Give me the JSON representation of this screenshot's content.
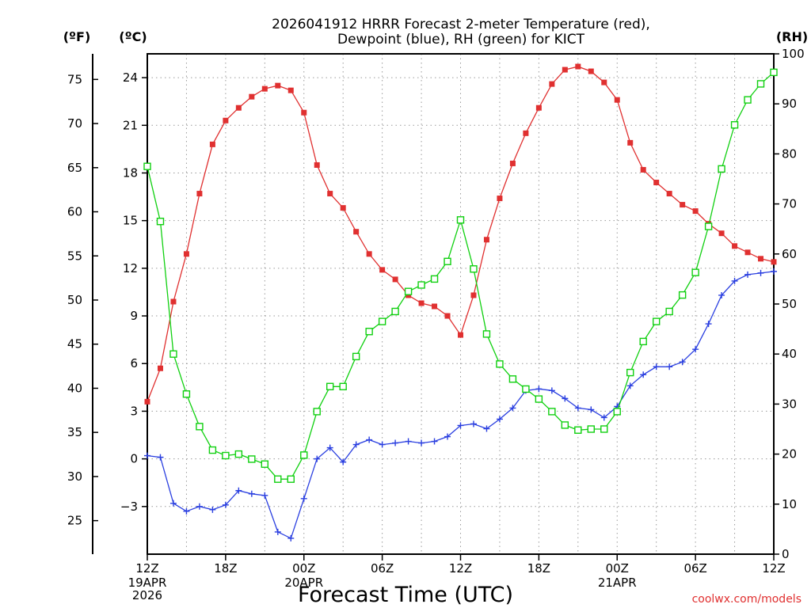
{
  "chart_data": {
    "type": "line",
    "title_line1": "2026041912 HRRR Forecast 2-meter Temperature (red),",
    "title_line2": "Dewpoint (blue), RH (green) for KICT",
    "xlabel": "Forecast Time (UTC)",
    "units": {
      "f": "(ºF)",
      "c": "(ºC)",
      "rh": "(RH)"
    },
    "credit": "coolwx.com/models",
    "x_hours": [
      0,
      1,
      2,
      3,
      4,
      5,
      6,
      7,
      8,
      9,
      10,
      11,
      12,
      13,
      14,
      15,
      16,
      17,
      18,
      19,
      20,
      21,
      22,
      23,
      24,
      25,
      26,
      27,
      28,
      29,
      30,
      31,
      32,
      33,
      34,
      35,
      36,
      37,
      38,
      39,
      40,
      41,
      42,
      43,
      44,
      45,
      46,
      47,
      48
    ],
    "x_range": [
      0,
      48
    ],
    "x_ticks": [
      {
        "hour": 0,
        "label": "12Z",
        "sub1": "19APR",
        "sub2": "2026"
      },
      {
        "hour": 6,
        "label": "18Z",
        "sub1": "",
        "sub2": ""
      },
      {
        "hour": 12,
        "label": "00Z",
        "sub1": "20APR",
        "sub2": ""
      },
      {
        "hour": 18,
        "label": "06Z",
        "sub1": "",
        "sub2": ""
      },
      {
        "hour": 24,
        "label": "12Z",
        "sub1": "",
        "sub2": ""
      },
      {
        "hour": 30,
        "label": "18Z",
        "sub1": "",
        "sub2": ""
      },
      {
        "hour": 36,
        "label": "00Z",
        "sub1": "21APR",
        "sub2": ""
      },
      {
        "hour": 42,
        "label": "06Z",
        "sub1": "",
        "sub2": ""
      },
      {
        "hour": 48,
        "label": "12Z",
        "sub1": "",
        "sub2": ""
      }
    ],
    "c_range": [
      -6,
      25.5
    ],
    "c_ticks": [
      "-3",
      "0",
      "3",
      "6",
      "9",
      "12",
      "15",
      "18",
      "21",
      "24"
    ],
    "f_ticks": [
      "25",
      "30",
      "35",
      "40",
      "45",
      "50",
      "55",
      "60",
      "65",
      "70",
      "75"
    ],
    "rh_range": [
      0,
      100
    ],
    "rh_ticks": [
      "0",
      "10",
      "20",
      "30",
      "40",
      "50",
      "60",
      "70",
      "80",
      "90",
      "100"
    ],
    "grid": true,
    "series": [
      {
        "name": "Temperature",
        "unit": "C",
        "color": "#e03030",
        "marker": "filled-square",
        "values": [
          3.6,
          5.7,
          9.9,
          12.9,
          16.7,
          19.8,
          21.3,
          22.1,
          22.8,
          23.3,
          23.5,
          23.2,
          21.8,
          18.5,
          16.7,
          15.8,
          14.3,
          12.9,
          11.9,
          11.3,
          10.3,
          9.8,
          9.6,
          9.0,
          7.8,
          10.3,
          13.8,
          16.4,
          18.6,
          20.5,
          22.1,
          23.6,
          24.5,
          24.7,
          24.4,
          23.7,
          22.6,
          19.9,
          18.2,
          17.4,
          16.7,
          16.0,
          15.6,
          14.8,
          14.2,
          13.4,
          13.0,
          12.6,
          12.4
        ]
      },
      {
        "name": "Dewpoint",
        "unit": "C",
        "color": "#2a3fe0",
        "marker": "plus",
        "values": [
          0.2,
          0.1,
          -2.8,
          -3.3,
          -3.0,
          -3.2,
          -2.9,
          -2.0,
          -2.2,
          -2.3,
          -4.6,
          -5.0,
          -2.5,
          0.0,
          0.7,
          -0.2,
          0.9,
          1.2,
          0.9,
          1.0,
          1.1,
          1.0,
          1.1,
          1.4,
          2.1,
          2.2,
          1.9,
          2.5,
          3.2,
          4.3,
          4.4,
          4.3,
          3.8,
          3.2,
          3.1,
          2.6,
          3.3,
          4.6,
          5.3,
          5.8,
          5.8,
          6.1,
          6.9,
          8.5,
          10.3,
          11.2,
          11.6,
          11.7,
          11.8
        ]
      },
      {
        "name": "RH",
        "unit": "%",
        "color": "#10d010",
        "marker": "open-square",
        "values": [
          77.5,
          66.5,
          40.0,
          32.0,
          25.5,
          20.8,
          19.7,
          20.0,
          19.0,
          18.0,
          15.0,
          15.0,
          19.8,
          28.5,
          33.5,
          33.5,
          39.5,
          44.5,
          46.5,
          48.5,
          52.5,
          53.8,
          55.0,
          58.5,
          66.8,
          57.0,
          44.0,
          38.0,
          35.0,
          33.0,
          31.0,
          28.5,
          25.8,
          24.8,
          25.0,
          25.0,
          28.5,
          36.3,
          42.5,
          46.5,
          48.5,
          51.8,
          56.3,
          65.5,
          77.0,
          85.8,
          90.8,
          94.0,
          96.3
        ]
      }
    ]
  }
}
